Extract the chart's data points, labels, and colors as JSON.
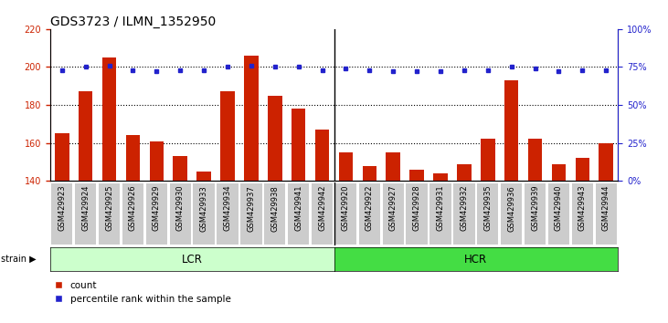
{
  "title": "GDS3723 / ILMN_1352950",
  "categories": [
    "GSM429923",
    "GSM429924",
    "GSM429925",
    "GSM429926",
    "GSM429929",
    "GSM429930",
    "GSM429933",
    "GSM429934",
    "GSM429937",
    "GSM429938",
    "GSM429941",
    "GSM429942",
    "GSM429920",
    "GSM429922",
    "GSM429927",
    "GSM429928",
    "GSM429931",
    "GSM429932",
    "GSM429935",
    "GSM429936",
    "GSM429939",
    "GSM429940",
    "GSM429943",
    "GSM429944"
  ],
  "bar_values": [
    165,
    187,
    205,
    164,
    161,
    153,
    145,
    187,
    206,
    185,
    178,
    167,
    155,
    148,
    155,
    146,
    144,
    149,
    162,
    193,
    162,
    149,
    152,
    160
  ],
  "percentile_values": [
    73,
    75,
    76,
    73,
    72,
    73,
    73,
    75,
    76,
    75,
    75,
    73,
    74,
    73,
    72,
    72,
    72,
    73,
    73,
    75,
    74,
    72,
    73,
    73
  ],
  "lcr_count": 12,
  "hcr_count": 12,
  "ylim_left": [
    140,
    220
  ],
  "ylim_right": [
    0,
    100
  ],
  "yticks_left": [
    140,
    160,
    180,
    200,
    220
  ],
  "yticks_right": [
    0,
    25,
    50,
    75,
    100
  ],
  "bar_color": "#cc2200",
  "dot_color": "#2222cc",
  "lcr_color": "#ccffcc",
  "hcr_color": "#44dd44",
  "bar_baseline": 140,
  "bar_width": 0.6,
  "title_fontsize": 10,
  "tick_label_fontsize": 7,
  "xtick_fontsize": 6,
  "grid_color": "#000000",
  "separator_color": "#000000",
  "xtick_bg_color": "#cccccc"
}
